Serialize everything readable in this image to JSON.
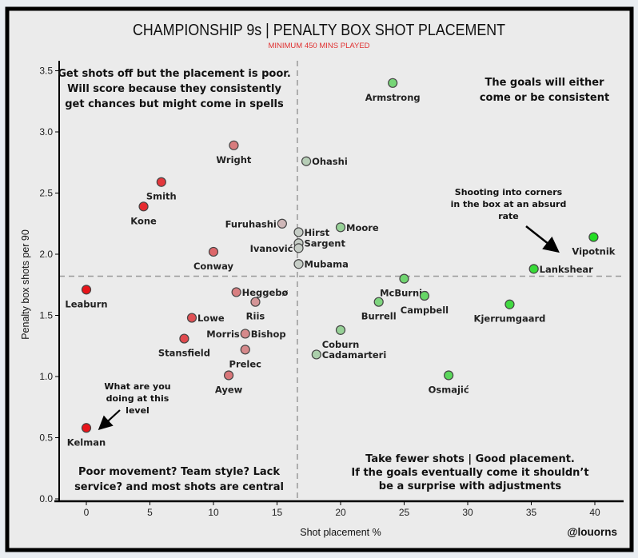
{
  "chart_data": {
    "type": "scatter",
    "title": "CHAMPIONSHIP 9s | PENALTY BOX SHOT PLACEMENT",
    "subtitle": "MINIMUM 450 MINS PLAYED",
    "xlabel": "Shot placement %",
    "ylabel": "Penalty box shots per 90",
    "xlim": [
      -2.3,
      42.5
    ],
    "ylim": [
      -0.05,
      3.6
    ],
    "xticks": [
      "0",
      "5",
      "10",
      "15",
      "20",
      "25",
      "30",
      "35",
      "40"
    ],
    "yticks": [
      "0.0",
      "0.5",
      "1.0",
      "1.5",
      "2.0",
      "2.5",
      "3.0",
      "3.5"
    ],
    "grid": false,
    "reference_lines": {
      "x": 16.6,
      "y": 1.82
    },
    "colors": {
      "low": "#e8141a",
      "mid": "#cccccc",
      "high": "#22dd22",
      "title_sub": "#e03030"
    },
    "points": [
      {
        "name": "Armstrong",
        "x": 24.1,
        "y": 3.4
      },
      {
        "name": "Wright",
        "x": 11.6,
        "y": 2.89
      },
      {
        "name": "Ohashi",
        "x": 17.3,
        "y": 2.76
      },
      {
        "name": "Smith",
        "x": 5.9,
        "y": 2.59
      },
      {
        "name": "Kone",
        "x": 4.5,
        "y": 2.39
      },
      {
        "name": "Furuhashi",
        "x": 15.4,
        "y": 2.25
      },
      {
        "name": "Moore",
        "x": 20.0,
        "y": 2.22
      },
      {
        "name": "Hirst",
        "x": 16.7,
        "y": 2.18
      },
      {
        "name": "Vipotnik",
        "x": 39.9,
        "y": 2.14
      },
      {
        "name": "Sargent",
        "x": 16.7,
        "y": 2.09
      },
      {
        "name": "Ivanović",
        "x": 16.7,
        "y": 2.05
      },
      {
        "name": "Conway",
        "x": 10.0,
        "y": 2.02
      },
      {
        "name": "Mubama",
        "x": 16.7,
        "y": 1.92
      },
      {
        "name": "Lankshear",
        "x": 35.2,
        "y": 1.88
      },
      {
        "name": "McBurnie",
        "x": 25.0,
        "y": 1.8
      },
      {
        "name": "Leaburn",
        "x": 0.0,
        "y": 1.71
      },
      {
        "name": "Heggebø",
        "x": 11.8,
        "y": 1.69
      },
      {
        "name": "Campbell",
        "x": 26.6,
        "y": 1.66
      },
      {
        "name": "Riis",
        "x": 13.3,
        "y": 1.61
      },
      {
        "name": "Burrell",
        "x": 23.0,
        "y": 1.61
      },
      {
        "name": "Kjerrumgaard",
        "x": 33.3,
        "y": 1.59
      },
      {
        "name": "Lowe",
        "x": 8.3,
        "y": 1.48
      },
      {
        "name": "Coburn",
        "x": 20.0,
        "y": 1.38
      },
      {
        "name": "Morris",
        "x": 12.5,
        "y": 1.35
      },
      {
        "name": "Bishop",
        "x": 12.5,
        "y": 1.35
      },
      {
        "name": "Stansfield",
        "x": 7.7,
        "y": 1.31
      },
      {
        "name": "Prelec",
        "x": 12.5,
        "y": 1.22
      },
      {
        "name": "Cadamarteri",
        "x": 18.1,
        "y": 1.18
      },
      {
        "name": "Ayew",
        "x": 11.2,
        "y": 1.01
      },
      {
        "name": "Osmajić",
        "x": 28.5,
        "y": 1.01
      },
      {
        "name": "Kelman",
        "x": 0.0,
        "y": 0.58
      }
    ],
    "annotations": {
      "top_left": [
        "Get shots off but the placement is poor.",
        "Will score because they consistently",
        "get chances but might come in spells"
      ],
      "top_right": [
        "The goals will either",
        "come or be consistent"
      ],
      "bottom_left": [
        "Poor movement? Team style? Lack",
        "service? and most shots are central"
      ],
      "bottom_right": [
        "Take fewer shots | Good placement.",
        "If the goals eventually come it shouldn’t",
        "be a surprise with adjustments"
      ],
      "vipotnik_note": [
        "Shooting into corners",
        "in the box at an absurd",
        "rate"
      ],
      "kelman_note": [
        "What are you",
        "doing at this",
        "level"
      ]
    },
    "credit": "@louorns"
  }
}
